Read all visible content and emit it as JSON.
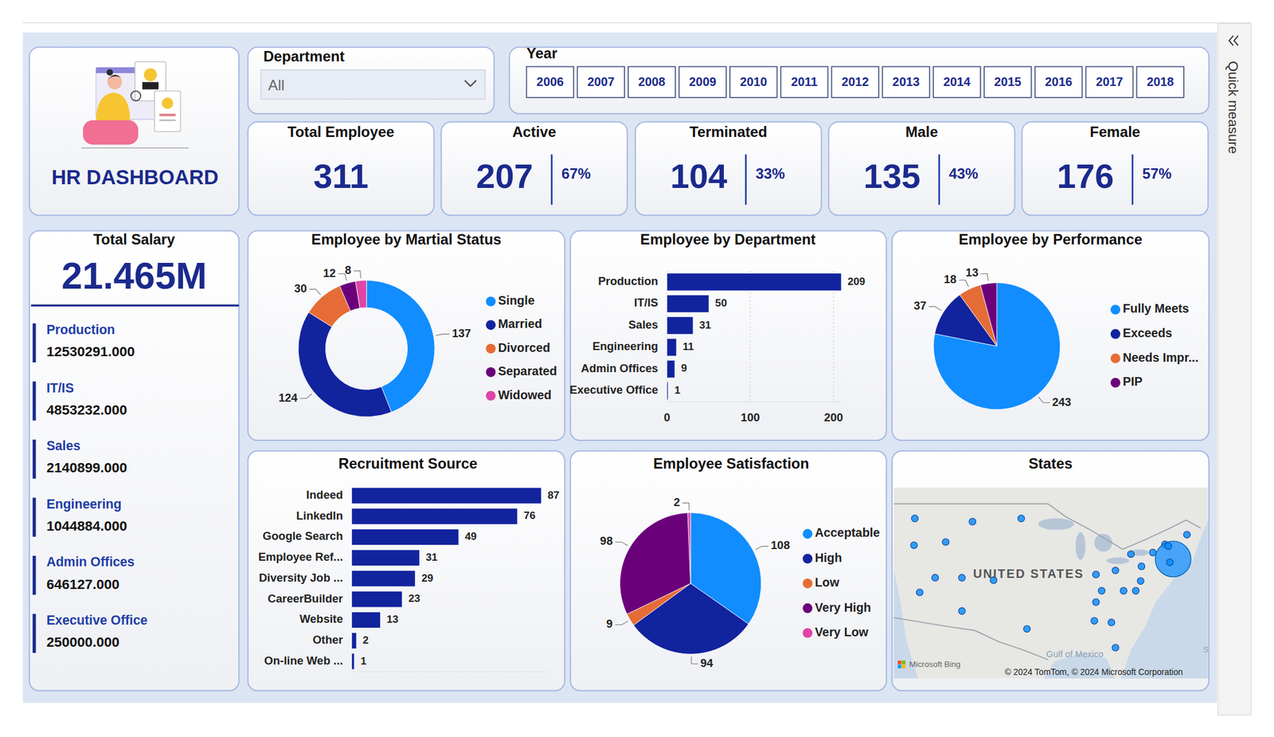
{
  "header": {
    "title": "HR DASHBOARD"
  },
  "department_filter": {
    "label": "Department",
    "selected": "All"
  },
  "year_filter": {
    "label": "Year",
    "years": [
      2006,
      2007,
      2008,
      2009,
      2010,
      2011,
      2012,
      2013,
      2014,
      2015,
      2016,
      2017,
      2018
    ]
  },
  "kpis": [
    {
      "title": "Total Employee",
      "value": 311
    },
    {
      "title": "Active",
      "value": 207,
      "share": "67%"
    },
    {
      "title": "Terminated",
      "value": 104,
      "share": "33%"
    },
    {
      "title": "Male",
      "value": 135,
      "share": "43%"
    },
    {
      "title": "Female",
      "value": 176,
      "share": "57%"
    }
  ],
  "total_salary": {
    "title": "Total Salary",
    "total": "21.465M",
    "departments": [
      {
        "name": "Production",
        "amount": "12530291.000"
      },
      {
        "name": "IT/IS",
        "amount": "4853232.000"
      },
      {
        "name": "Sales",
        "amount": "2140899.000"
      },
      {
        "name": "Engineering",
        "amount": "1044884.000"
      },
      {
        "name": "Admin Offices",
        "amount": "646127.000"
      },
      {
        "name": "Executive Office",
        "amount": "250000.000"
      }
    ]
  },
  "chart_data": [
    {
      "type": "donut",
      "title": "Employee by Martial Status",
      "categories": [
        "Single",
        "Married",
        "Divorced",
        "Separated",
        "Widowed"
      ],
      "values": [
        137,
        124,
        30,
        12,
        8
      ],
      "colors": [
        "#118DFF",
        "#12239E",
        "#E66C37",
        "#6B007B",
        "#E044A7"
      ],
      "legend": "right",
      "data_labels": true
    },
    {
      "type": "bar",
      "orientation": "horizontal",
      "title": "Employee by Department",
      "categories": [
        "Production",
        "IT/IS",
        "Sales",
        "Engineering",
        "Admin Offices",
        "Executive Office"
      ],
      "values": [
        209,
        50,
        31,
        11,
        9,
        1
      ],
      "color": "#12239E",
      "xlim": [
        0,
        210
      ],
      "xticks": [
        0,
        100,
        200
      ],
      "grid": true,
      "data_labels": true
    },
    {
      "type": "pie",
      "title": "Employee by Performance",
      "categories": [
        "Fully Meets",
        "Exceeds",
        "Needs Impr...",
        "PIP"
      ],
      "values": [
        243,
        37,
        18,
        13
      ],
      "colors": [
        "#118DFF",
        "#12239E",
        "#E66C37",
        "#6B007B"
      ],
      "legend": "right",
      "data_labels": true
    },
    {
      "type": "bar",
      "orientation": "horizontal",
      "title": "Recruitment Source",
      "categories": [
        "Indeed",
        "LinkedIn",
        "Google Search",
        "Employee Ref...",
        "Diversity Job ...",
        "CareerBuilder",
        "Website",
        "Other",
        "On-line Web ..."
      ],
      "values": [
        87,
        76,
        49,
        31,
        29,
        23,
        13,
        2,
        1
      ],
      "color": "#12239E",
      "xlim": [
        0,
        90
      ],
      "tick_labels": "y",
      "data_labels": true
    },
    {
      "type": "pie",
      "title": "Employee Satisfaction",
      "categories": [
        "Acceptable",
        "High",
        "Low",
        "Very High",
        "Very Low"
      ],
      "values": [
        108,
        94,
        9,
        98,
        2
      ],
      "colors": [
        "#118DFF",
        "#12239E",
        "#E66C37",
        "#6B007B",
        "#E044A7"
      ],
      "legend": "right",
      "data_labels": true
    }
  ],
  "map": {
    "title": "States",
    "country_label": "UNITED STATES",
    "water_label": "Gulf of Mexico",
    "edge_label": "S",
    "attribution": "Microsoft Bing",
    "copyright": "© 2024 TomTom, © 2024 Microsoft Corporation"
  },
  "side_panel": {
    "label": "Quick measure"
  }
}
